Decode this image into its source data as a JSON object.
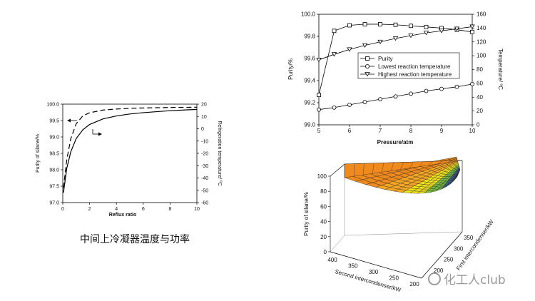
{
  "chart_data": [
    {
      "type": "line",
      "xlabel": "Reflux ratio",
      "ylabel": "Purity of silane/%",
      "y2label": "Refrigeration temperature/ ºC",
      "xlim": [
        0,
        10
      ],
      "ylim": [
        97.0,
        100.0
      ],
      "y2lim": [
        -60,
        20
      ],
      "xticks": [
        "0",
        "2",
        "4",
        "6",
        "8",
        "10"
      ],
      "yticks": [
        "97.0",
        "97.5",
        "98.0",
        "98.5",
        "99.0",
        "99.5",
        "100.0"
      ],
      "y2ticks": [
        "-60",
        "-50",
        "-40",
        "-30",
        "-20",
        "-10",
        "0",
        "10",
        "20"
      ],
      "series": [
        {
          "axis": "left",
          "style": "solid",
          "x": [
            0.05,
            0.3,
            0.6,
            1,
            1.5,
            2,
            3,
            4,
            5,
            6,
            7,
            8,
            9,
            10
          ],
          "y": [
            97.3,
            98.05,
            98.55,
            98.95,
            99.22,
            99.38,
            99.55,
            99.64,
            99.7,
            99.74,
            99.77,
            99.8,
            99.82,
            99.84
          ]
        },
        {
          "axis": "right",
          "style": "dashed",
          "x": [
            0.05,
            0.3,
            0.6,
            1,
            1.5,
            2,
            3,
            4,
            5,
            6,
            7,
            8,
            9,
            10
          ],
          "y": [
            -48,
            -25,
            -8,
            4,
            10.5,
            13,
            15.2,
            16,
            16.6,
            16.9,
            17.1,
            17.3,
            17.4,
            17.5
          ]
        }
      ],
      "caption": "中间上冷凝器温度与功率"
    },
    {
      "type": "line",
      "xlabel": "Pressure/atm",
      "ylabel": "Purity/%",
      "y2label": "Temperature/ ºC",
      "xlim": [
        5,
        10
      ],
      "ylim": [
        99.0,
        100.0
      ],
      "y2lim": [
        0,
        160
      ],
      "xticks": [
        "5",
        "6",
        "7",
        "8",
        "9",
        "10"
      ],
      "yticks": [
        "99.0",
        "99.2",
        "99.4",
        "99.6",
        "99.8",
        "100.0"
      ],
      "y2ticks": [
        "0",
        "20",
        "40",
        "60",
        "80",
        "100",
        "120",
        "140",
        "160"
      ],
      "legend": [
        "Purity",
        "Lowest reaction temperature",
        "Highest reaction temperature"
      ],
      "legend_position": "center-right",
      "series": [
        {
          "name": "Purity",
          "axis": "left",
          "marker": "square",
          "x": [
            5,
            5.5,
            6,
            6.5,
            7,
            7.5,
            8,
            8.5,
            9,
            9.5,
            10
          ],
          "y": [
            99.27,
            99.85,
            99.9,
            99.91,
            99.91,
            99.905,
            99.895,
            99.885,
            99.875,
            99.86,
            99.84
          ]
        },
        {
          "name": "Lowest reaction temperature",
          "axis": "right",
          "marker": "circle",
          "x": [
            5,
            5.5,
            6,
            6.5,
            7,
            7.5,
            8,
            8.5,
            9,
            9.5,
            10
          ],
          "y": [
            22,
            25,
            29,
            33,
            37,
            41,
            45,
            49,
            52,
            55,
            59
          ]
        },
        {
          "name": "Highest reaction temperature",
          "axis": "right",
          "marker": "triangle-down",
          "x": [
            5,
            5.5,
            6,
            6.5,
            7,
            7.5,
            8,
            8.5,
            9,
            9.5,
            10
          ],
          "y": [
            94,
            102,
            109,
            115,
            120,
            125,
            129,
            133,
            136,
            139,
            142
          ]
        }
      ]
    },
    {
      "type": "surface3d",
      "xlabel": "Second intercondenser/kW",
      "ylabel": "First intercondenser/kW",
      "zlabel": "Purity of silane/%",
      "zticks": [
        "0",
        "20",
        "40",
        "60",
        "80",
        "100"
      ],
      "xticks": [
        "400",
        "350",
        "300",
        "250",
        "200"
      ],
      "yticks": [
        "200",
        "250",
        "300",
        "350"
      ],
      "colors": [
        "#2a2a7a",
        "#3f6fa0",
        "#7cc243",
        "#f2e21a",
        "#f5a623",
        "#f08a1c"
      ]
    }
  ],
  "caption": "中间上冷凝器温度与功率",
  "watermark": "化工人club"
}
